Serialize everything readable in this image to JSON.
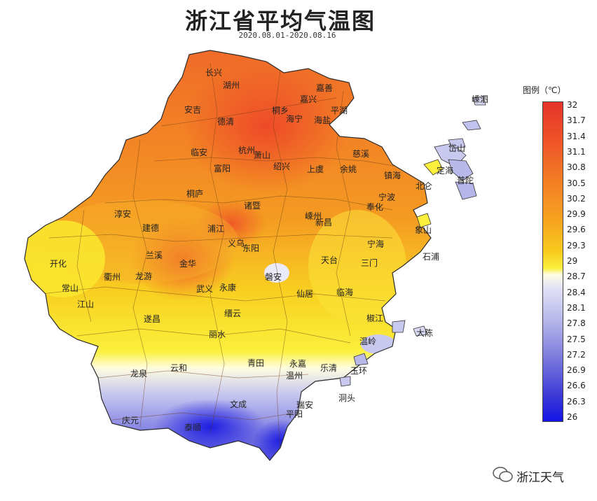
{
  "title": "浙江省平均气温图",
  "subtitle": "2020.08.01-2020.08.16",
  "legend": {
    "title": "图例（℃）",
    "ticks": [
      "32",
      "31.7",
      "31.4",
      "31.1",
      "30.8",
      "30.5",
      "30.2",
      "29.9",
      "29.6",
      "29.3",
      "29",
      "28.7",
      "28.4",
      "28.1",
      "27.8",
      "27.5",
      "27.2",
      "26.9",
      "26.6",
      "26.3",
      "26"
    ],
    "colors": {
      "hot": "#e5322b",
      "warm": "#f6a31f",
      "mid": "#fbee3c",
      "neutral": "#fffde3",
      "cool": "#7c7bdd",
      "cold": "#1414e6"
    }
  },
  "cities": [
    "长兴",
    "湖州",
    "嘉兴",
    "嘉善",
    "桐乡",
    "平湖",
    "安吉",
    "德清",
    "海宁",
    "海盐",
    "嵊泗",
    "岱山",
    "临安",
    "杭州",
    "萧山",
    "绍兴",
    "上虞",
    "余姚",
    "慈溪",
    "镇海",
    "定海",
    "普陀",
    "宁波",
    "北仑",
    "奉化",
    "富阳",
    "桐庐",
    "诸暨",
    "嵊州",
    "新昌",
    "宁海",
    "象山",
    "淳安",
    "建德",
    "兰溪",
    "浦江",
    "义乌",
    "东阳",
    "磐安",
    "天台",
    "三门",
    "石浦",
    "开化",
    "衢州",
    "龙游",
    "金华",
    "武义",
    "永康",
    "仙居",
    "临海",
    "常山",
    "江山",
    "缙云",
    "遂昌",
    "丽水",
    "青田",
    "温岭",
    "椒江",
    "大陈",
    "玉环",
    "乐清",
    "永嘉",
    "温州",
    "瑞安",
    "洞头",
    "龙泉",
    "云和",
    "庆元",
    "泰顺",
    "文成",
    "平阳"
  ],
  "watermark": "浙江天气"
}
